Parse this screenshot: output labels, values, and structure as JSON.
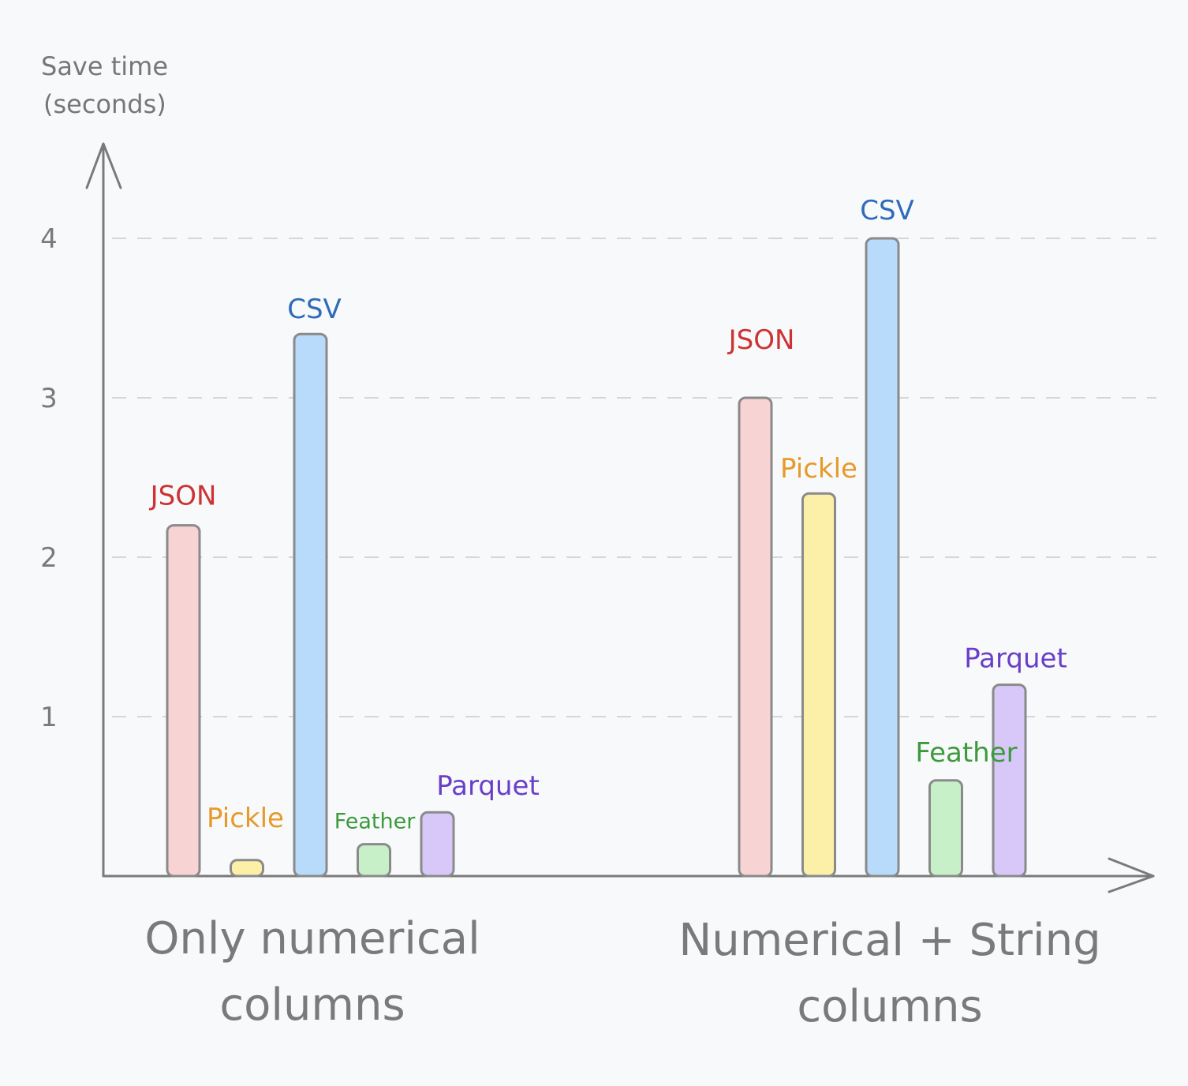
{
  "chart_data": {
    "type": "bar",
    "ylabel_lines": [
      "Save time",
      "(seconds)"
    ],
    "yticks": [
      "1",
      "2",
      "3",
      "4"
    ],
    "ylim": [
      0,
      4.5
    ],
    "grid": true,
    "groups": [
      {
        "label_lines": [
          "Only numerical",
          "columns"
        ],
        "bars": [
          {
            "name": "JSON",
            "value": 2.2
          },
          {
            "name": "Pickle",
            "value": 0.1
          },
          {
            "name": "CSV",
            "value": 3.4
          },
          {
            "name": "Feather",
            "value": 0.2
          },
          {
            "name": "Parquet",
            "value": 0.4
          }
        ]
      },
      {
        "label_lines": [
          "Numerical + String",
          "columns"
        ],
        "bars": [
          {
            "name": "JSON",
            "value": 3.0
          },
          {
            "name": "Pickle",
            "value": 2.4
          },
          {
            "name": "CSV",
            "value": 4.0
          },
          {
            "name": "Feather",
            "value": 0.6
          },
          {
            "name": "Parquet",
            "value": 1.2
          }
        ]
      }
    ],
    "colors": {
      "JSON": {
        "fill": "#f7d3d3",
        "text": "#cc3333"
      },
      "Pickle": {
        "fill": "#fcefa8",
        "text": "#e69a2a"
      },
      "CSV": {
        "fill": "#b8dbfc",
        "text": "#2e6bb8"
      },
      "Feather": {
        "fill": "#c8f0c8",
        "text": "#3c9a3c"
      },
      "Parquet": {
        "fill": "#d8c8fa",
        "text": "#6a3fc8"
      }
    }
  }
}
